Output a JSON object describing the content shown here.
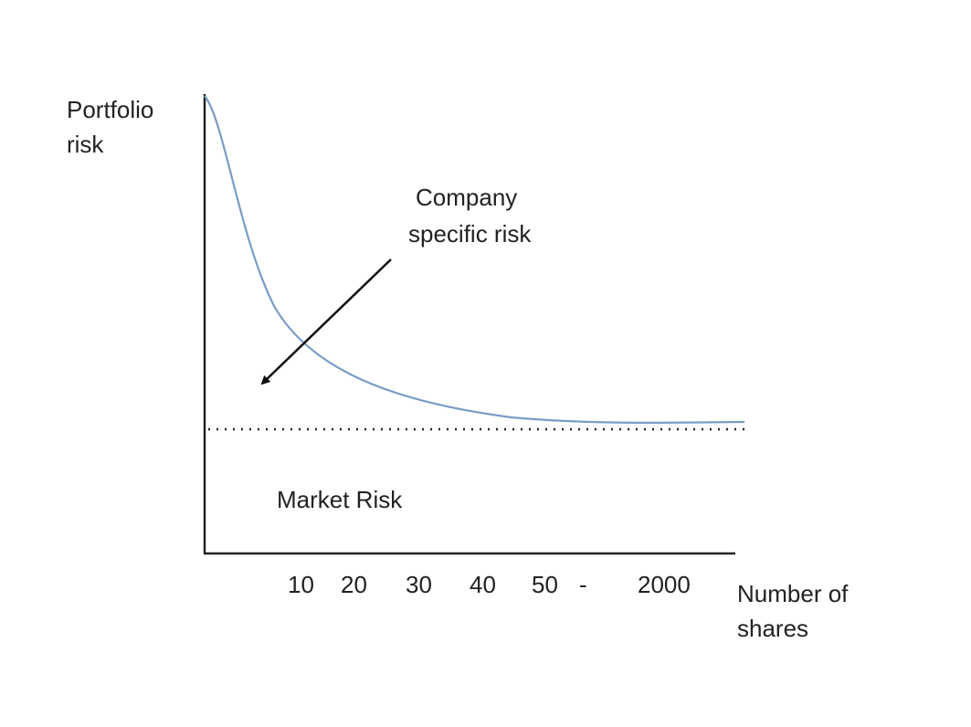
{
  "y_axis_title": [
    "Portfolio",
    "risk"
  ],
  "annotation": [
    "Company",
    "specific risk"
  ],
  "region_label": "Market Risk",
  "x_axis_labels": [
    "10",
    "20",
    "30",
    "40",
    "50",
    "-",
    "2000"
  ],
  "x_axis_title": [
    "Number of",
    "shares"
  ]
}
